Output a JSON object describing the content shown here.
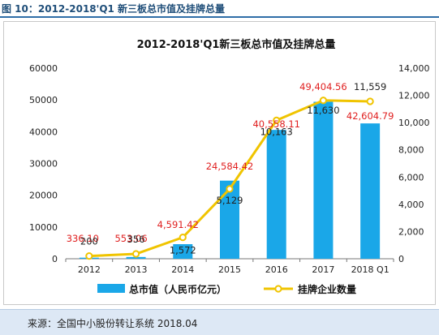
{
  "figure_label": "图 10：2012-2018'Q1 新三板总市值及挂牌总量",
  "source": "来源：全国中小股份转让系统  2018.04",
  "chart_data": {
    "type": "bar+line",
    "title": "2012-2018'Q1新三板总市值及挂牌总量",
    "categories": [
      "2012",
      "2013",
      "2014",
      "2015",
      "2016",
      "2017",
      "2018 Q1"
    ],
    "left_axis": {
      "ylim": [
        0,
        60000
      ],
      "ticks": [
        "0",
        "10000",
        "20000",
        "30000",
        "40000",
        "50000",
        "60000"
      ]
    },
    "right_axis": {
      "ylim": [
        0,
        14000
      ],
      "ticks": [
        "0",
        "2,000",
        "4,000",
        "6,000",
        "8,000",
        "10,000",
        "12,000",
        "14,000"
      ]
    },
    "series": [
      {
        "name": "总市值（人民币亿元）",
        "type": "bar",
        "axis": "left",
        "color": "#1aa7e8",
        "values": [
          336.1,
          553.06,
          4591.42,
          24584.42,
          40558.11,
          49404.56,
          42604.79
        ],
        "labels": [
          "336.10",
          "553.06",
          "4,591.42",
          "24,584.42",
          "40,558.11",
          "49,404.56",
          "42,604.79"
        ],
        "label_color": "#e02020"
      },
      {
        "name": "挂牌企业数量",
        "type": "line",
        "axis": "right",
        "color": "#f0c400",
        "values": [
          200,
          356,
          1572,
          5129,
          10163,
          11630,
          11559
        ],
        "labels": [
          "200",
          "356",
          "1,572",
          "5,129",
          "10,163",
          "11,630",
          "11,559"
        ],
        "label_color": "#222222"
      }
    ],
    "grid": false,
    "legend_position": "bottom"
  }
}
